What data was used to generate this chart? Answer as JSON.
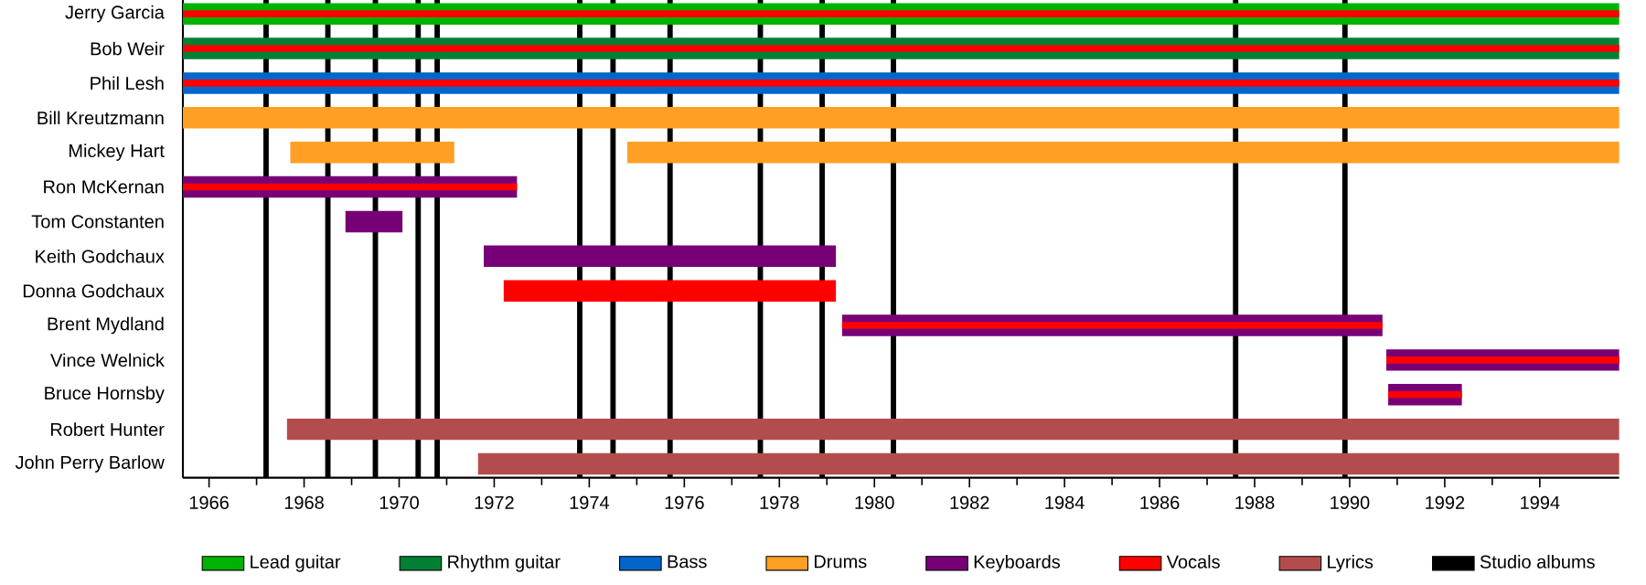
{
  "chart_data": {
    "type": "bar",
    "orientation": "horizontal",
    "legend": "bottom",
    "categories": [
      "Jerry Garcia",
      "Bob Weir",
      "Phil Lesh",
      "Bill Kreutzmann",
      "Mickey Hart",
      "Ron McKernan",
      "Tom Constanten",
      "Keith Godchaux",
      "Donna Godchaux",
      "Brent Mydland",
      "Vince Welnick",
      "Bruce Hornsby",
      "Robert Hunter",
      "John Perry Barlow"
    ],
    "xlim": [
      1965.45,
      1995.67
    ],
    "xticks": [
      1966,
      1968,
      1970,
      1972,
      1974,
      1976,
      1978,
      1980,
      1982,
      1984,
      1986,
      1988,
      1990,
      1992,
      1994
    ],
    "series": [
      {
        "name": "Lead guitar",
        "color": "#00b200",
        "base": [
          1965.45,
          null,
          null,
          null,
          null,
          null,
          null,
          null,
          null,
          null,
          null,
          null,
          null,
          null
        ],
        "values": [
          30.22,
          null,
          null,
          null,
          null,
          null,
          null,
          null,
          null,
          null,
          null,
          null,
          null,
          null
        ]
      },
      {
        "name": "Rhythm guitar",
        "color": "#008033",
        "base": [
          null,
          1965.45,
          null,
          null,
          null,
          null,
          null,
          null,
          null,
          null,
          null,
          null,
          null,
          null
        ],
        "values": [
          null,
          30.22,
          null,
          null,
          null,
          null,
          null,
          null,
          null,
          null,
          null,
          null,
          null,
          null
        ]
      },
      {
        "name": "Bass",
        "color": "#0066cc",
        "base": [
          null,
          null,
          1965.45,
          null,
          null,
          null,
          null,
          null,
          null,
          null,
          null,
          null,
          null,
          null
        ],
        "values": [
          null,
          null,
          30.22,
          null,
          null,
          null,
          null,
          null,
          null,
          null,
          null,
          null,
          null,
          null
        ]
      },
      {
        "name": "Drums",
        "color": "#ffa024",
        "base": [
          null,
          null,
          null,
          1965.45,
          1967.71,
          null,
          null,
          null,
          null,
          null,
          null,
          null,
          null,
          null
        ],
        "values": [
          null,
          null,
          null,
          30.22,
          3.45,
          null,
          null,
          null,
          null,
          null,
          null,
          null,
          null,
          null
        ]
      },
      {
        "color": "#ffa024",
        "base": [
          null,
          null,
          null,
          null,
          1974.8,
          null,
          null,
          null,
          null,
          null,
          null,
          null,
          null,
          null
        ],
        "values": [
          null,
          null,
          null,
          null,
          20.87,
          null,
          null,
          null,
          null,
          null,
          null,
          null,
          null,
          null
        ]
      },
      {
        "name": "Keyboards",
        "color": "#770077",
        "base": [
          null,
          null,
          null,
          null,
          null,
          1965.45,
          1968.87,
          1971.78,
          null,
          1979.32,
          1990.77,
          1990.81,
          null,
          null
        ],
        "values": [
          null,
          null,
          null,
          null,
          null,
          7.03,
          1.2,
          7.41,
          null,
          11.37,
          4.9,
          1.55,
          null,
          null
        ]
      },
      {
        "name": "Vocals",
        "color": "#ff0000",
        "base": [
          1965.45,
          1965.45,
          1965.45,
          null,
          null,
          1965.45,
          null,
          null,
          1972.2,
          1979.32,
          1990.77,
          1990.81,
          null,
          null
        ],
        "values": [
          30.22,
          30.22,
          30.22,
          null,
          null,
          7.03,
          null,
          null,
          6.99,
          11.37,
          4.9,
          1.55,
          null,
          null
        ]
      },
      {
        "name": "Lyrics",
        "color": "#b34d4d",
        "base": [
          null,
          null,
          null,
          null,
          null,
          null,
          null,
          null,
          null,
          null,
          null,
          null,
          1967.64,
          1971.66
        ],
        "values": [
          null,
          null,
          null,
          null,
          null,
          null,
          null,
          null,
          null,
          null,
          null,
          null,
          28.03,
          24.01
        ]
      }
    ],
    "ref_lines": [
      {
        "axis": "x",
        "value": 1967.2,
        "label": "Studio albums",
        "color": "#000000"
      },
      {
        "axis": "x",
        "value": 1968.5,
        "color": "#000000"
      },
      {
        "axis": "x",
        "value": 1969.5,
        "color": "#000000"
      },
      {
        "axis": "x",
        "value": 1970.4,
        "color": "#000000"
      },
      {
        "axis": "x",
        "value": 1970.8,
        "color": "#000000"
      },
      {
        "axis": "x",
        "value": 1973.8,
        "color": "#000000"
      },
      {
        "axis": "x",
        "value": 1974.5,
        "color": "#000000"
      },
      {
        "axis": "x",
        "value": 1975.7,
        "color": "#000000"
      },
      {
        "axis": "x",
        "value": 1977.6,
        "color": "#000000"
      },
      {
        "axis": "x",
        "value": 1978.9,
        "color": "#000000"
      },
      {
        "axis": "x",
        "value": 1980.4,
        "color": "#000000"
      },
      {
        "axis": "x",
        "value": 1987.6,
        "color": "#000000"
      },
      {
        "axis": "x",
        "value": 1989.9,
        "color": "#000000"
      }
    ]
  }
}
